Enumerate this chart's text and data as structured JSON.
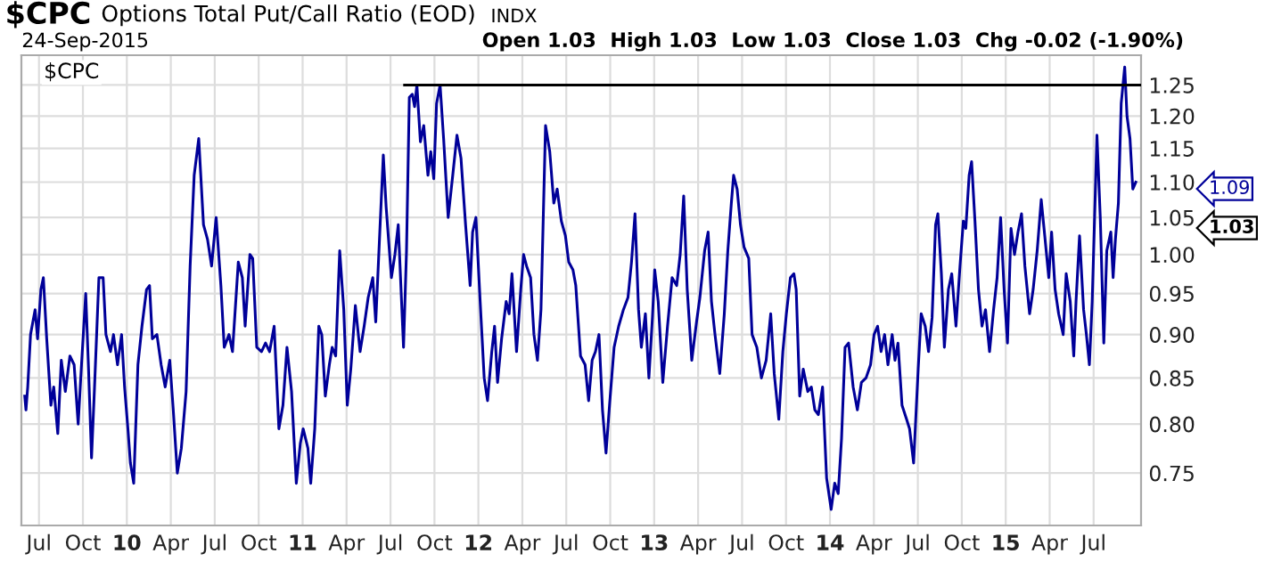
{
  "chart_data": {
    "type": "line",
    "title": "$CPC",
    "subtitle": "Options Total Put/Call Ratio (EOD)",
    "annotations": [
      "INDX",
      "24-Sep-2015",
      "Open 1.03  High 1.03  Low 1.03  Close 1.03  Chg -0.02 (-1.90%)",
      "$CPC",
      "1.09",
      "1.03"
    ],
    "log": "y",
    "grid": true,
    "ylim": [
      0.7,
      1.3
    ],
    "yticks": [
      0.75,
      {
        "value": 0.8,
        "label": "0.80"
      },
      0.85,
      {
        "value": 0.9,
        "label": "0.90"
      },
      0.95,
      {
        "value": 1.0,
        "label": "1.00"
      },
      1.05,
      {
        "value": 1.1,
        "label": "1.10"
      },
      1.15,
      {
        "value": 1.2,
        "label": "1.20"
      },
      1.25
    ],
    "xlim": [
      2009.4,
      2015.77
    ],
    "xticks": [
      {
        "value": 2009.5,
        "label": "Jul"
      },
      {
        "value": 2009.75,
        "label": "Oct"
      },
      {
        "value": 2010,
        "label": "10"
      },
      {
        "value": 2010.25,
        "label": "Apr"
      },
      {
        "value": 2010.5,
        "label": "Jul"
      },
      {
        "value": 2010.75,
        "label": "Oct"
      },
      {
        "value": 2011,
        "label": "11"
      },
      {
        "value": 2011.25,
        "label": "Apr"
      },
      {
        "value": 2011.5,
        "label": "Jul"
      },
      {
        "value": 2011.75,
        "label": "Oct"
      },
      {
        "value": 2012,
        "label": "12"
      },
      {
        "value": 2012.25,
        "label": "Apr"
      },
      {
        "value": 2012.5,
        "label": "Jul"
      },
      {
        "value": 2012.75,
        "label": "Oct"
      },
      {
        "value": 2013,
        "label": "13"
      },
      {
        "value": 2013.25,
        "label": "Apr"
      },
      {
        "value": 2013.5,
        "label": "Jul"
      },
      {
        "value": 2013.75,
        "label": "Oct"
      },
      {
        "value": 2014,
        "label": "14"
      },
      {
        "value": 2014.25,
        "label": "Apr"
      },
      {
        "value": 2014.5,
        "label": "Jul"
      },
      {
        "value": 2014.75,
        "label": "Oct"
      },
      {
        "value": 2015,
        "label": "15"
      },
      {
        "value": 2015.25,
        "label": "Apr"
      },
      {
        "value": 2015.5,
        "label": "Jul"
      }
    ],
    "series": [
      {
        "color": "#000099",
        "x": [
          2009.419,
          2009.426,
          2009.436,
          2009.452,
          2009.478,
          2009.492,
          2009.511,
          2009.525,
          2009.544,
          2009.568,
          2009.584,
          2009.607,
          2009.627,
          2009.65,
          2009.676,
          2009.7,
          2009.723,
          2009.742,
          2009.766,
          2009.782,
          2009.799,
          2009.815,
          2009.841,
          2009.865,
          2009.881,
          2009.907,
          2009.924,
          2009.947,
          2009.97,
          2009.987,
          2010.006,
          2010.02,
          2010.039,
          2010.063,
          2010.086,
          2010.112,
          2010.129,
          2010.145,
          2010.171,
          2010.195,
          2010.218,
          2010.244,
          2010.264,
          2010.287,
          2010.31,
          2010.337,
          2010.36,
          2010.383,
          2010.409,
          2010.436,
          2010.459,
          2010.482,
          2010.508,
          2010.535,
          2010.554,
          2010.581,
          2010.601,
          2010.634,
          2010.657,
          2010.673,
          2010.7,
          2010.716,
          2010.739,
          2010.766,
          2010.789,
          2010.812,
          2010.838,
          2010.865,
          2010.888,
          2010.911,
          2010.937,
          2010.964,
          2010.987,
          2011.003,
          2011.03,
          2011.046,
          2011.069,
          2011.092,
          2011.109,
          2011.129,
          2011.152,
          2011.168,
          2011.188,
          2011.211,
          2011.234,
          2011.254,
          2011.274,
          2011.3,
          2011.327,
          2011.35,
          2011.373,
          2011.399,
          2011.416,
          2011.439,
          2011.459,
          2011.475,
          2011.505,
          2011.525,
          2011.544,
          2011.574,
          2011.591,
          2011.607,
          2011.624,
          2011.637,
          2011.65,
          2011.67,
          2011.689,
          2011.713,
          2011.729,
          2011.746,
          2011.762,
          2011.782,
          2011.802,
          2011.828,
          2011.854,
          2011.878,
          2011.901,
          2011.927,
          2011.953,
          2011.967,
          2011.986,
          2012.01,
          2012.033,
          2012.052,
          2012.076,
          2012.092,
          2012.109,
          2012.132,
          2012.158,
          2012.175,
          2012.191,
          2012.217,
          2012.241,
          2012.257,
          2012.274,
          2012.297,
          2012.316,
          2012.336,
          2012.356,
          2012.382,
          2012.406,
          2012.429,
          2012.448,
          2012.472,
          2012.495,
          2012.514,
          2012.538,
          2012.554,
          2012.581,
          2012.607,
          2012.627,
          2012.647,
          2012.666,
          2012.686,
          2012.706,
          2012.726,
          2012.746,
          2012.772,
          2012.798,
          2012.825,
          2012.851,
          2012.871,
          2012.891,
          2012.911,
          2012.927,
          2012.95,
          2012.97,
          2012.99,
          2013.003,
          2013.023,
          2013.049,
          2013.076,
          2013.102,
          2013.128,
          2013.148,
          2013.168,
          2013.188,
          2013.214,
          2013.241,
          2013.26,
          2013.287,
          2013.307,
          2013.326,
          2013.346,
          2013.373,
          2013.399,
          2013.419,
          2013.439,
          2013.452,
          2013.472,
          2013.491,
          2013.511,
          2013.538,
          2013.557,
          2013.584,
          2013.61,
          2013.637,
          2013.663,
          2013.683,
          2013.709,
          2013.732,
          2013.752,
          2013.775,
          2013.795,
          2013.808,
          2013.828,
          2013.848,
          2013.874,
          2013.894,
          2013.914,
          2013.934,
          2013.958,
          2013.981,
          2014.007,
          2014.027,
          2014.047,
          2014.066,
          2014.086,
          2014.106,
          2014.132,
          2014.156,
          2014.179,
          2014.205,
          2014.231,
          2014.251,
          2014.271,
          2014.291,
          2014.311,
          2014.33,
          2014.354,
          2014.37,
          2014.387,
          2014.41,
          2014.436,
          2014.453,
          2014.476,
          2014.502,
          2014.519,
          2014.542,
          2014.561,
          2014.581,
          2014.601,
          2014.614,
          2014.634,
          2014.651,
          2014.674,
          2014.693,
          2014.717,
          2014.74,
          2014.759,
          2014.773,
          2014.792,
          2014.806,
          2014.825,
          2014.845,
          2014.865,
          2014.885,
          2014.908,
          2014.931,
          2014.951,
          2014.971,
          2014.991,
          2015.01,
          2015.03,
          2015.05,
          2015.07,
          2015.09,
          2015.109,
          2015.136,
          2015.156,
          2015.179,
          2015.202,
          2015.222,
          2015.245,
          2015.261,
          2015.281,
          2015.301,
          2015.327,
          2015.344,
          2015.367,
          2015.387,
          2015.4,
          2015.42,
          2015.443,
          2015.459,
          2015.476,
          2015.492,
          2015.519,
          2015.538,
          2015.558,
          2015.575,
          2015.598,
          2015.611,
          2015.624,
          2015.641,
          2015.657,
          2015.677,
          2015.69,
          2015.707,
          2015.723,
          2015.74
        ],
        "values": [
          0.83,
          0.815,
          0.84,
          0.9,
          0.93,
          0.895,
          0.955,
          0.97,
          0.895,
          0.82,
          0.84,
          0.79,
          0.87,
          0.835,
          0.875,
          0.865,
          0.8,
          0.865,
          0.95,
          0.86,
          0.765,
          0.835,
          0.97,
          0.97,
          0.9,
          0.88,
          0.9,
          0.865,
          0.9,
          0.84,
          0.795,
          0.76,
          0.74,
          0.865,
          0.91,
          0.955,
          0.96,
          0.895,
          0.9,
          0.865,
          0.84,
          0.87,
          0.815,
          0.75,
          0.775,
          0.835,
          0.985,
          1.11,
          1.165,
          1.04,
          1.02,
          0.985,
          1.05,
          0.96,
          0.885,
          0.9,
          0.88,
          0.99,
          0.97,
          0.91,
          1.0,
          0.995,
          0.885,
          0.88,
          0.89,
          0.88,
          0.91,
          0.795,
          0.82,
          0.885,
          0.835,
          0.74,
          0.78,
          0.795,
          0.775,
          0.74,
          0.795,
          0.91,
          0.9,
          0.83,
          0.865,
          0.885,
          0.875,
          1.005,
          0.93,
          0.82,
          0.86,
          0.935,
          0.88,
          0.91,
          0.945,
          0.97,
          0.915,
          1.03,
          1.14,
          1.065,
          0.97,
          1.0,
          1.04,
          0.885,
          1.005,
          1.23,
          1.235,
          1.215,
          1.25,
          1.16,
          1.185,
          1.11,
          1.145,
          1.105,
          1.22,
          1.25,
          1.165,
          1.05,
          1.11,
          1.17,
          1.135,
          1.04,
          0.96,
          1.03,
          1.05,
          0.94,
          0.85,
          0.825,
          0.88,
          0.91,
          0.845,
          0.895,
          0.94,
          0.925,
          0.975,
          0.88,
          0.955,
          1.0,
          0.985,
          0.97,
          0.9,
          0.87,
          0.93,
          1.185,
          1.145,
          1.07,
          1.09,
          1.045,
          1.025,
          0.99,
          0.98,
          0.96,
          0.875,
          0.865,
          0.825,
          0.87,
          0.88,
          0.9,
          0.815,
          0.77,
          0.82,
          0.885,
          0.91,
          0.93,
          0.945,
          0.99,
          1.055,
          0.93,
          0.885,
          0.925,
          0.85,
          0.92,
          0.98,
          0.94,
          0.845,
          0.91,
          0.97,
          0.96,
          1.0,
          1.08,
          0.955,
          0.87,
          0.915,
          0.945,
          1.005,
          1.03,
          0.94,
          0.9,
          0.855,
          0.925,
          1.005,
          1.07,
          1.11,
          1.09,
          1.04,
          1.01,
          0.995,
          0.9,
          0.885,
          0.85,
          0.87,
          0.925,
          0.855,
          0.805,
          0.88,
          0.925,
          0.97,
          0.975,
          0.955,
          0.83,
          0.86,
          0.835,
          0.84,
          0.815,
          0.81,
          0.84,
          0.745,
          0.715,
          0.74,
          0.73,
          0.785,
          0.885,
          0.89,
          0.84,
          0.815,
          0.845,
          0.85,
          0.865,
          0.9,
          0.91,
          0.88,
          0.9,
          0.865,
          0.9,
          0.87,
          0.89,
          0.82,
          0.805,
          0.795,
          0.76,
          0.86,
          0.925,
          0.91,
          0.88,
          0.92,
          1.04,
          1.055,
          0.975,
          0.885,
          0.955,
          0.975,
          0.91,
          0.985,
          1.045,
          1.035,
          1.11,
          1.13,
          1.045,
          0.955,
          0.91,
          0.93,
          0.88,
          0.93,
          0.97,
          1.05,
          0.955,
          0.89,
          1.035,
          1.0,
          1.03,
          1.055,
          0.985,
          0.925,
          0.955,
          1.005,
          1.075,
          1.025,
          0.97,
          1.03,
          0.955,
          0.925,
          0.9,
          0.975,
          0.94,
          0.875,
          0.94,
          1.025,
          0.93,
          0.9,
          0.865,
          0.94,
          1.17,
          1.05,
          0.89,
          1.005,
          1.03,
          0.97,
          1.02,
          1.07,
          1.22,
          1.28,
          1.2,
          1.165,
          1.09,
          1.1
        ]
      },
      {
        "color": "#000000",
        "x": [
          2011.58,
          2015.77
        ],
        "values": [
          1.25,
          1.25
        ]
      }
    ]
  }
}
